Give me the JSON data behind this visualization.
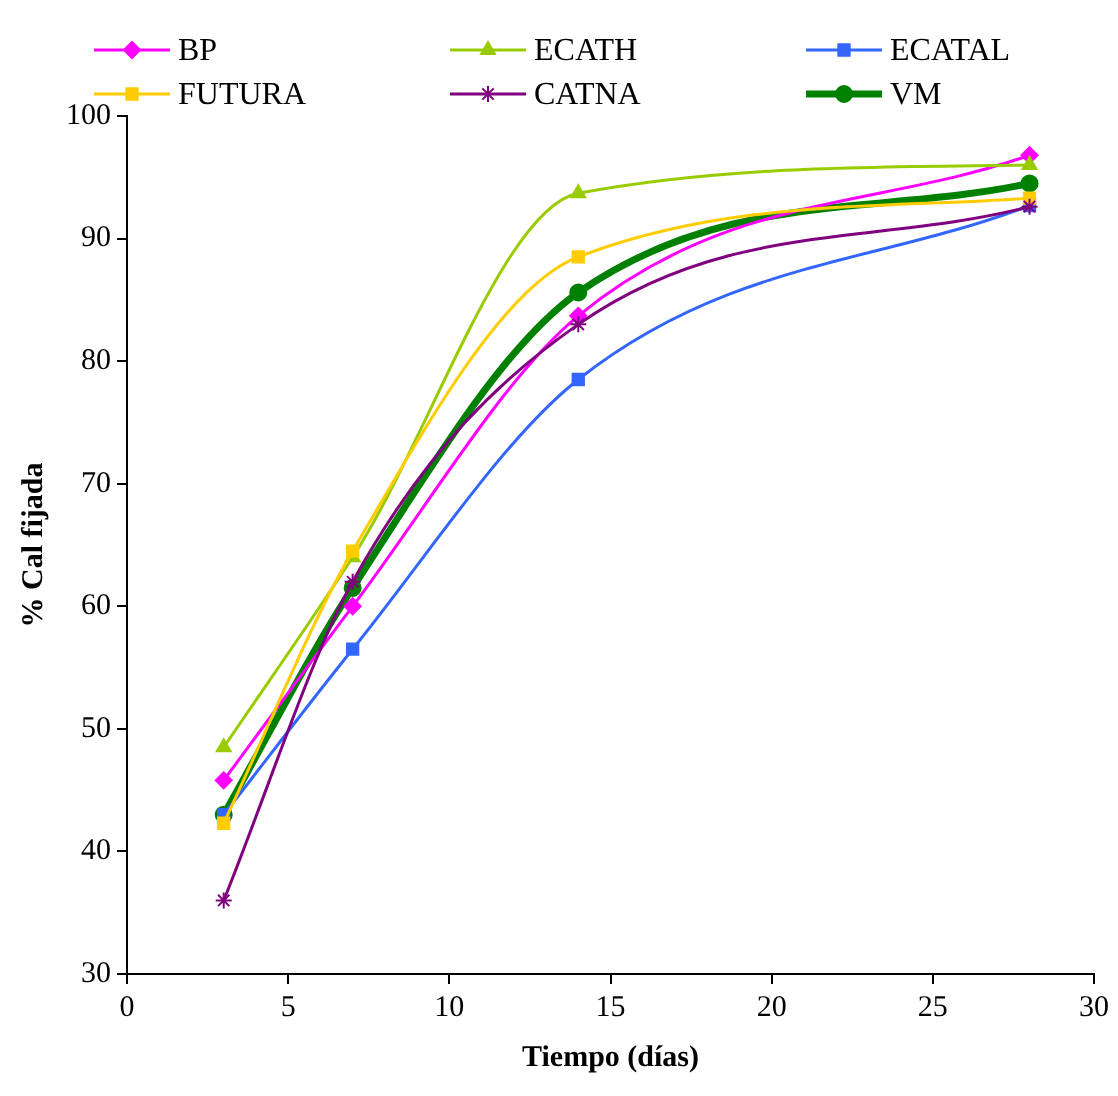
{
  "chart_data": {
    "type": "line",
    "xlabel": "Tiempo (días)",
    "ylabel": "% Cal fijada",
    "x": [
      3,
      7,
      14,
      28
    ],
    "series": [
      {
        "name": "BP",
        "color": "#ff00ff",
        "marker": "diamond",
        "values": [
          45.8,
          60,
          83.7,
          96.8
        ]
      },
      {
        "name": "ECATH",
        "color": "#99cc00",
        "marker": "triangle",
        "values": [
          48.5,
          64,
          93.7,
          96
        ]
      },
      {
        "name": "ECATAL",
        "color": "#3366ff",
        "marker": "square",
        "values": [
          43,
          56.5,
          78.5,
          92.7
        ]
      },
      {
        "name": "FUTURA",
        "color": "#ffcc00",
        "marker": "square",
        "values": [
          42.3,
          64.5,
          88.5,
          93.3
        ]
      },
      {
        "name": "CATNA",
        "color": "#800080",
        "marker": "cross",
        "values": [
          36,
          62,
          83,
          92.6
        ]
      },
      {
        "name": "VM",
        "color": "#008000",
        "marker": "circle",
        "values": [
          43,
          61.5,
          85.6,
          94.5
        ]
      }
    ],
    "xlim": [
      0,
      30
    ],
    "xticks": [
      0,
      5,
      10,
      15,
      20,
      25,
      30
    ],
    "ylim": [
      30,
      100
    ],
    "yticks": [
      30,
      40,
      50,
      60,
      70,
      80,
      90,
      100
    ],
    "grid": false,
    "legend": "top",
    "line_style": "solid"
  }
}
